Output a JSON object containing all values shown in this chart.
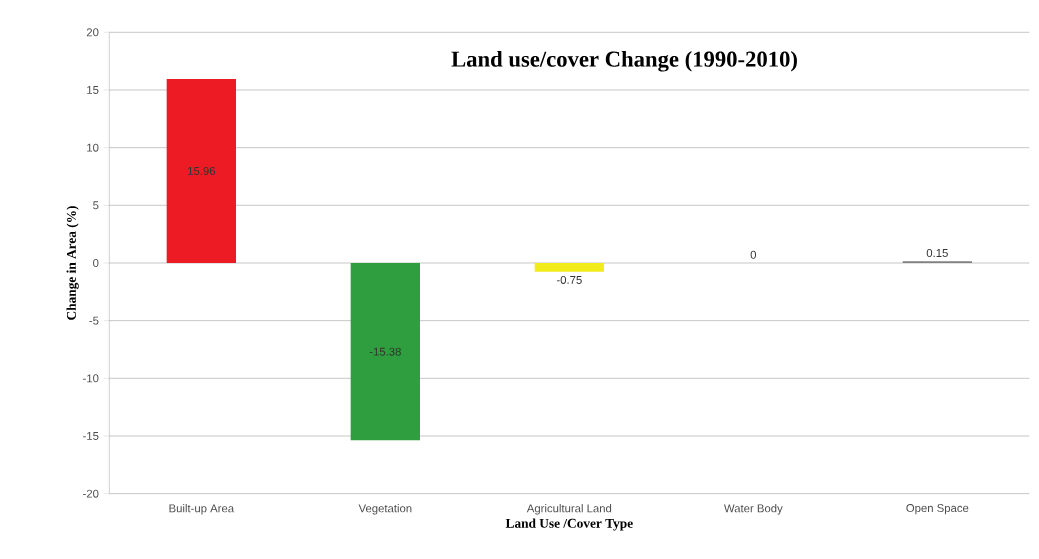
{
  "chart_data": {
    "type": "bar",
    "title": "Land use/cover Change (1990-2010)",
    "xlabel": "Land Use /Cover Type",
    "ylabel": "Change in  Area  (%)",
    "categories": [
      "Built-up Area",
      "Vegetation",
      "Agricultural Land",
      "Water Body",
      "Open Space"
    ],
    "values": [
      15.96,
      -15.38,
      -0.75,
      0,
      0.15
    ],
    "colors": [
      "#ed1c24",
      "#2e9e3e",
      "#f2ec1c",
      "#808080",
      "#808080"
    ],
    "ylim": [
      -20,
      20
    ],
    "yticks": [
      -20,
      -15,
      -10,
      -5,
      0,
      5,
      10,
      15,
      20
    ],
    "grid": "y",
    "data_labels": true
  }
}
